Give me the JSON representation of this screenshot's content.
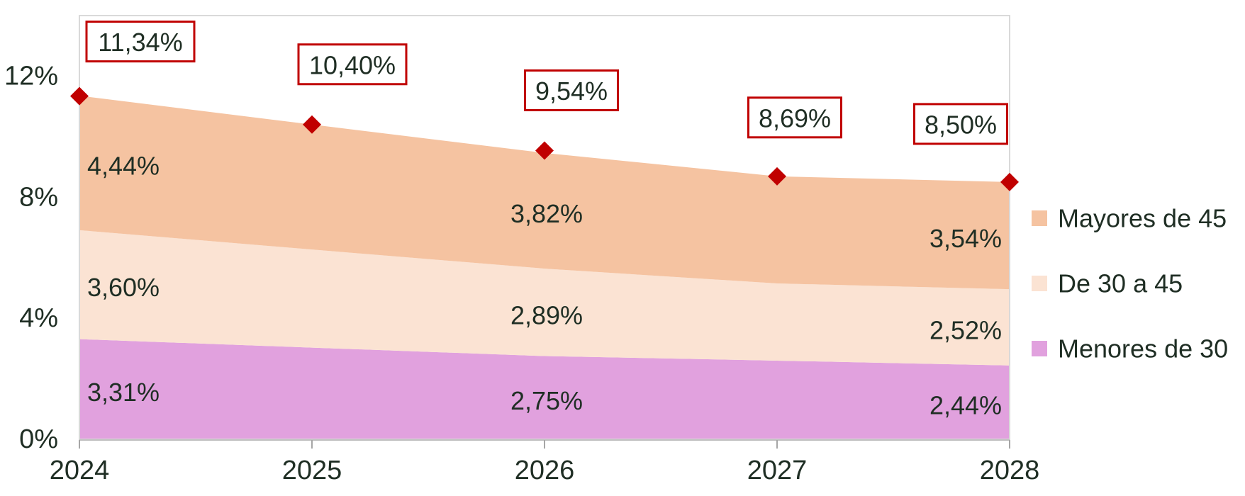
{
  "chart_data": {
    "type": "area",
    "stacked": true,
    "title": "",
    "x_labels": [
      "2024",
      "2025",
      "2026",
      "2027",
      "2028"
    ],
    "ylim": [
      0,
      14
    ],
    "y_ticks": [
      {
        "label": "0%",
        "value": 0
      },
      {
        "label": "4%",
        "value": 4
      },
      {
        "label": "8%",
        "value": 8
      },
      {
        "label": "12%",
        "value": 12
      }
    ],
    "grid": false,
    "series": [
      {
        "name": "Menores de 30",
        "color": "#E1A1DE",
        "values": [
          3.31,
          3.03,
          2.75,
          2.6,
          2.44
        ],
        "labels": [
          "3,31%",
          null,
          "2,75%",
          null,
          "2,44%"
        ]
      },
      {
        "name": "De 30 a 45",
        "color": "#FBE3D3",
        "values": [
          3.6,
          3.24,
          2.89,
          2.55,
          2.52
        ],
        "labels": [
          "3,60%",
          null,
          "2,89%",
          null,
          "2,52%"
        ]
      },
      {
        "name": "Mayores de 45",
        "color": "#F5C3A1",
        "values": [
          4.44,
          4.13,
          3.82,
          3.54,
          3.54
        ],
        "labels": [
          "4,44%",
          null,
          "3,82%",
          null,
          "3,54%"
        ]
      }
    ],
    "totals": {
      "values": [
        11.34,
        10.4,
        9.54,
        8.69,
        8.5
      ],
      "labels": [
        "11,34%",
        "10,40%",
        "9,54%",
        "8,69%",
        "8,50%"
      ],
      "marker": "diamond",
      "marker_color": "#C00000",
      "label_box_border_color": "#C00000",
      "label_box_fill": "#FFFFFF"
    },
    "legend": {
      "position": "right",
      "items": [
        {
          "label": "Mayores de 45",
          "color": "#F5C3A1"
        },
        {
          "label": "De 30 a 45",
          "color": "#FBE3D3"
        },
        {
          "label": "Menores de 30",
          "color": "#E1A1DE"
        }
      ]
    },
    "colors": {
      "text": "#1F2E24",
      "accent_red": "#C00000",
      "plot_border": "#D9D9D9",
      "axis_line": "#BFBFBF",
      "tick": "#A6A6A6"
    }
  }
}
